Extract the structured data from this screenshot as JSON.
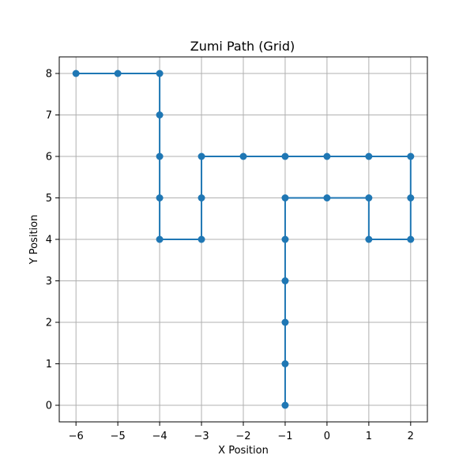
{
  "chart_data": {
    "type": "line",
    "title": "Zumi Path (Grid)",
    "xlabel": "X Position",
    "ylabel": "Y Position",
    "xlim": [
      -6.4,
      2.4
    ],
    "ylim": [
      -0.4,
      8.4
    ],
    "xticks": [
      -6,
      -5,
      -4,
      -3,
      -2,
      -1,
      0,
      1,
      2
    ],
    "yticks": [
      0,
      1,
      2,
      3,
      4,
      5,
      6,
      7,
      8
    ],
    "grid": true,
    "series": [
      {
        "color": "#1f77b4",
        "marker": "circle",
        "points": [
          [
            -1,
            0
          ],
          [
            -1,
            1
          ],
          [
            -1,
            2
          ],
          [
            -1,
            3
          ],
          [
            -1,
            4
          ],
          [
            -1,
            5
          ],
          [
            0,
            5
          ],
          [
            1,
            5
          ],
          [
            1,
            4
          ],
          [
            2,
            4
          ],
          [
            2,
            5
          ],
          [
            2,
            6
          ],
          [
            1,
            6
          ],
          [
            0,
            6
          ],
          [
            -1,
            6
          ],
          [
            -2,
            6
          ],
          [
            -3,
            6
          ],
          [
            -3,
            5
          ],
          [
            -3,
            4
          ],
          [
            -4,
            4
          ],
          [
            -4,
            5
          ],
          [
            -4,
            6
          ],
          [
            -4,
            7
          ],
          [
            -4,
            8
          ],
          [
            -5,
            8
          ],
          [
            -6,
            8
          ]
        ]
      }
    ]
  }
}
